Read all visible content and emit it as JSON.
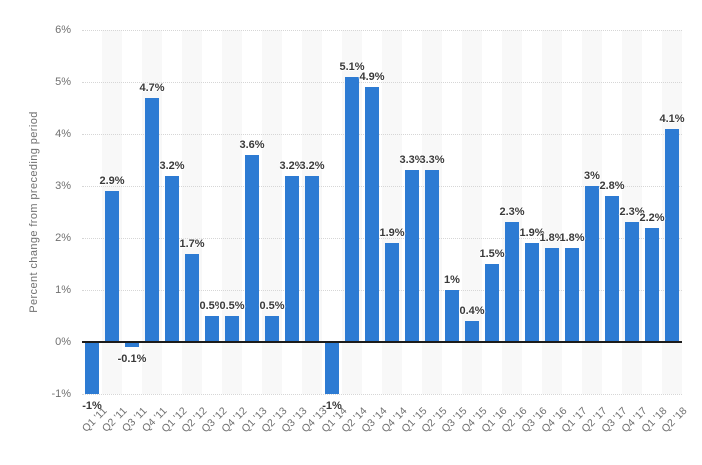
{
  "colors": {
    "bar": "#2d7bd3",
    "zero_line": "#1c1c1c",
    "gridline": "#d6d6d6",
    "stripe": "#f8f8f8",
    "axis_text": "#707070",
    "data_label_text": "#3a3a3a",
    "background": "#ffffff"
  },
  "chart_data": {
    "type": "bar",
    "title": "",
    "xlabel": "",
    "ylabel": "Percent change from preceding period",
    "ylim": [
      -1,
      6
    ],
    "grid": "horizontal-dotted",
    "legend": "none",
    "plot_background": "alternating vertical column stripes",
    "categories": [
      "Q1 '11",
      "Q2 '11",
      "Q3 '11",
      "Q4 '11",
      "Q1 '12",
      "Q2 '12",
      "Q3 '12",
      "Q4 '12",
      "Q1 '13",
      "Q2 '13",
      "Q3 '13",
      "Q4 '13",
      "Q1 '14",
      "Q2 '14",
      "Q3 '14",
      "Q4 '14",
      "Q1 '15",
      "Q2 '15",
      "Q3 '15",
      "Q4 '15",
      "Q1 '16",
      "Q2 '16",
      "Q3 '16",
      "Q4 '16",
      "Q1 '17",
      "Q2 '17",
      "Q3 '17",
      "Q4 '17",
      "Q1 '18",
      "Q2 '18"
    ],
    "values": [
      -1,
      2.9,
      -0.1,
      4.7,
      3.2,
      1.7,
      0.5,
      0.5,
      3.6,
      0.5,
      3.2,
      3.2,
      -1,
      5.1,
      4.9,
      1.9,
      3.3,
      3.3,
      1,
      0.4,
      1.5,
      2.3,
      1.9,
      1.8,
      1.8,
      3,
      2.8,
      2.3,
      2.2,
      4.1
    ],
    "data_labels": [
      "-1%",
      "2.9%",
      "-0.1%",
      "4.7%",
      "3.2%",
      "1.7%",
      "0.5%",
      "0.5%",
      "3.6%",
      "0.5%",
      "3.2%",
      "3.2%",
      "-1%",
      "5.1%",
      "4.9%",
      "1.9%",
      "3.3%",
      "3.3%",
      "1%",
      "0.4%",
      "1.5%",
      "2.3%",
      "1.9%",
      "1.8%",
      "1.8%",
      "3%",
      "2.8%",
      "2.3%",
      "2.2%",
      "4.1%"
    ],
    "y_ticks": [
      {
        "label": "6%",
        "value": 6
      },
      {
        "label": "5%",
        "value": 5
      },
      {
        "label": "4%",
        "value": 4
      },
      {
        "label": "3%",
        "value": 3
      },
      {
        "label": "2%",
        "value": 2
      },
      {
        "label": "1%",
        "value": 1
      },
      {
        "label": "0%",
        "value": 0
      },
      {
        "label": "-1%",
        "value": -1
      }
    ]
  }
}
